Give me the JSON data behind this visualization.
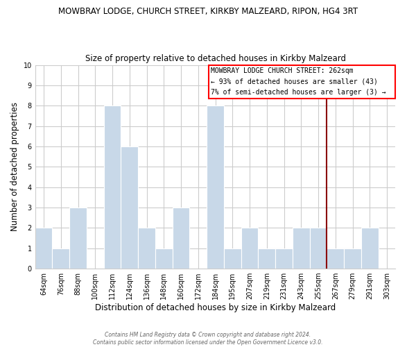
{
  "title": "MOWBRAY LODGE, CHURCH STREET, KIRKBY MALZEARD, RIPON, HG4 3RT",
  "subtitle": "Size of property relative to detached houses in Kirkby Malzeard",
  "xlabel": "Distribution of detached houses by size in Kirkby Malzeard",
  "ylabel": "Number of detached properties",
  "categories": [
    "64sqm",
    "76sqm",
    "88sqm",
    "100sqm",
    "112sqm",
    "124sqm",
    "136sqm",
    "148sqm",
    "160sqm",
    "172sqm",
    "184sqm",
    "195sqm",
    "207sqm",
    "219sqm",
    "231sqm",
    "243sqm",
    "255sqm",
    "267sqm",
    "279sqm",
    "291sqm",
    "303sqm"
  ],
  "values": [
    2,
    1,
    3,
    0,
    8,
    6,
    2,
    1,
    3,
    0,
    8,
    1,
    2,
    1,
    1,
    2,
    2,
    1,
    1,
    2,
    0
  ],
  "bar_color": "#c8d8e8",
  "bar_edge_color": "#aabbcc",
  "ylim": [
    0,
    10
  ],
  "yticks": [
    0,
    1,
    2,
    3,
    4,
    5,
    6,
    7,
    8,
    9,
    10
  ],
  "grid_color": "#cccccc",
  "background_color": "#ffffff",
  "red_line_x": 17.0,
  "annotation_text_line1": "MOWBRAY LODGE CHURCH STREET: 262sqm",
  "annotation_text_line2": "← 93% of detached houses are smaller (43)",
  "annotation_text_line3": "7% of semi-detached houses are larger (3) →",
  "footer_line1": "Contains HM Land Registry data © Crown copyright and database right 2024.",
  "footer_line2": "Contains public sector information licensed under the Open Government Licence v3.0.",
  "title_fontsize": 8.5,
  "subtitle_fontsize": 8.5,
  "xlabel_fontsize": 8.5,
  "ylabel_fontsize": 8.5,
  "tick_fontsize": 7,
  "ann_fontsize": 7,
  "footer_fontsize": 5.5
}
